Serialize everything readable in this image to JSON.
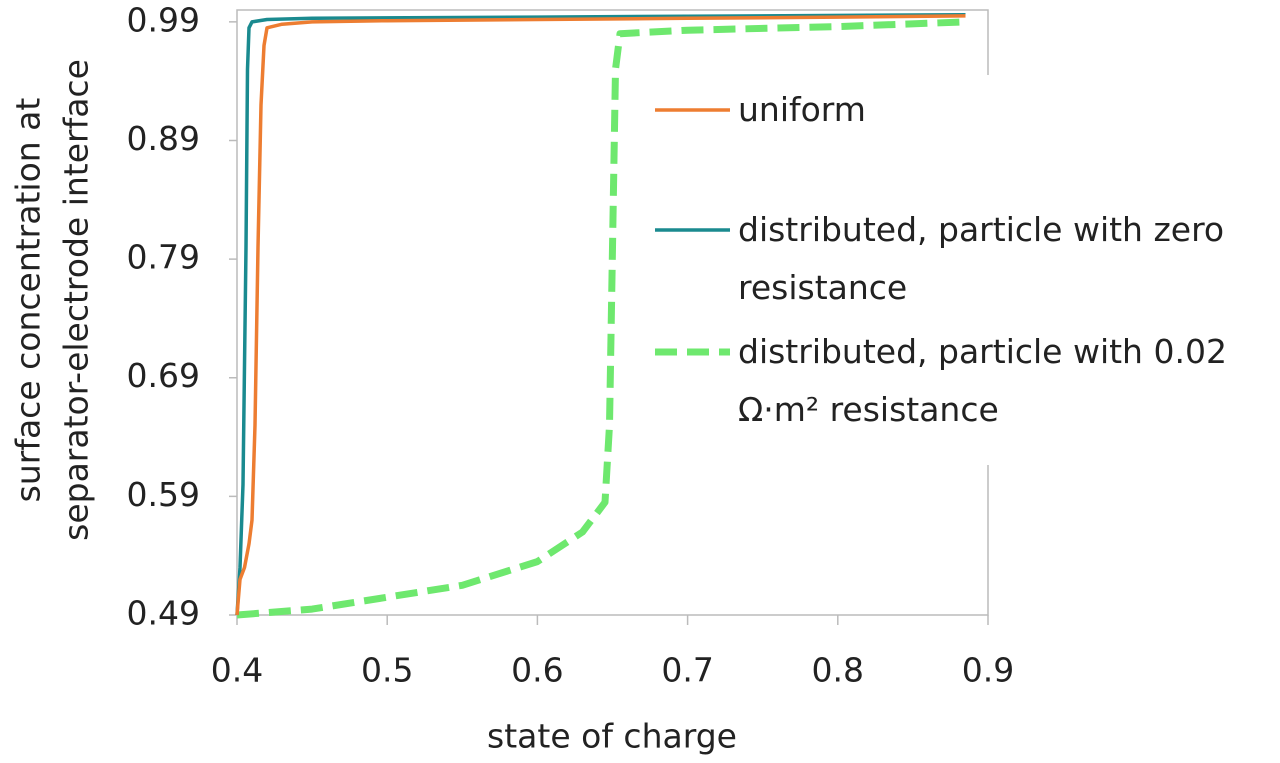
{
  "chart_data": {
    "type": "line",
    "xlabel": "state of charge",
    "ylabel": [
      "surface concentration at",
      "separator-electrode interface"
    ],
    "xlim": [
      0.4,
      0.9
    ],
    "xticks": [
      0.4,
      0.5,
      0.6,
      0.7,
      0.8,
      0.9
    ],
    "ylim": [
      0.49,
      1.0
    ],
    "yticks": [
      0.49,
      0.59,
      0.69,
      0.79,
      0.89,
      0.99
    ],
    "series": [
      {
        "name": "uniform",
        "color": "#ed7d31",
        "dash": false,
        "x": [
          0.4,
          0.402,
          0.405,
          0.408,
          0.41,
          0.412,
          0.414,
          0.416,
          0.418,
          0.42,
          0.43,
          0.45,
          0.5,
          0.6,
          0.7,
          0.8,
          0.885
        ],
        "values": [
          0.49,
          0.52,
          0.53,
          0.55,
          0.57,
          0.65,
          0.8,
          0.92,
          0.97,
          0.985,
          0.988,
          0.99,
          0.991,
          0.992,
          0.993,
          0.994,
          0.995
        ]
      },
      {
        "name": "distributed, particle with zero resistance",
        "color": "#1a8a8f",
        "dash": false,
        "x": [
          0.4,
          0.402,
          0.404,
          0.406,
          0.407,
          0.408,
          0.41,
          0.42,
          0.45,
          0.6,
          0.885
        ],
        "values": [
          0.49,
          0.53,
          0.6,
          0.8,
          0.95,
          0.985,
          0.99,
          0.992,
          0.993,
          0.994,
          0.996
        ]
      },
      {
        "name": "distributed, particle with 0.02 Ω·m² resistance",
        "color": "#6ee86e",
        "dash": true,
        "x": [
          0.4,
          0.45,
          0.5,
          0.55,
          0.6,
          0.63,
          0.645,
          0.648,
          0.65,
          0.652,
          0.655,
          0.7,
          0.8,
          0.885
        ],
        "values": [
          0.49,
          0.495,
          0.505,
          0.515,
          0.535,
          0.56,
          0.585,
          0.65,
          0.8,
          0.95,
          0.98,
          0.983,
          0.986,
          0.99
        ]
      }
    ]
  }
}
